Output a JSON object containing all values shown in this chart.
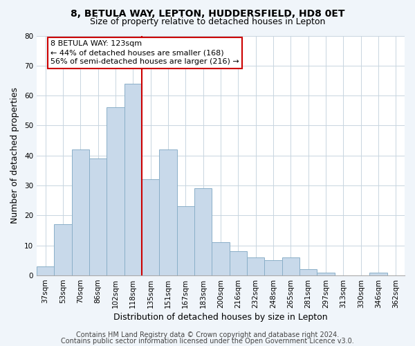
{
  "title": "8, BETULA WAY, LEPTON, HUDDERSFIELD, HD8 0ET",
  "subtitle": "Size of property relative to detached houses in Lepton",
  "xlabel": "Distribution of detached houses by size in Lepton",
  "ylabel": "Number of detached properties",
  "bar_color": "#c8d9ea",
  "bar_edge_color": "#8aafc8",
  "categories": [
    "37sqm",
    "53sqm",
    "70sqm",
    "86sqm",
    "102sqm",
    "118sqm",
    "135sqm",
    "151sqm",
    "167sqm",
    "183sqm",
    "200sqm",
    "216sqm",
    "232sqm",
    "248sqm",
    "265sqm",
    "281sqm",
    "297sqm",
    "313sqm",
    "330sqm",
    "346sqm",
    "362sqm"
  ],
  "values": [
    3,
    17,
    42,
    39,
    56,
    64,
    32,
    42,
    23,
    29,
    11,
    8,
    6,
    5,
    6,
    2,
    1,
    0,
    0,
    1,
    0
  ],
  "ylim": [
    0,
    80
  ],
  "yticks": [
    0,
    10,
    20,
    30,
    40,
    50,
    60,
    70,
    80
  ],
  "property_line_x": 5.5,
  "property_line_color": "#cc0000",
  "annotation_line1": "8 BETULA WAY: 123sqm",
  "annotation_line2": "← 44% of detached houses are smaller (168)",
  "annotation_line3": "56% of semi-detached houses are larger (216) →",
  "annotation_box_color": "#ffffff",
  "annotation_box_edge": "#cc0000",
  "footer_line1": "Contains HM Land Registry data © Crown copyright and database right 2024.",
  "footer_line2": "Contains public sector information licensed under the Open Government Licence v3.0.",
  "background_color": "#f0f5fa",
  "plot_background_color": "#ffffff",
  "title_fontsize": 10,
  "subtitle_fontsize": 9,
  "tick_label_fontsize": 7.5,
  "axis_label_fontsize": 9,
  "footer_fontsize": 7,
  "annotation_fontsize": 8
}
